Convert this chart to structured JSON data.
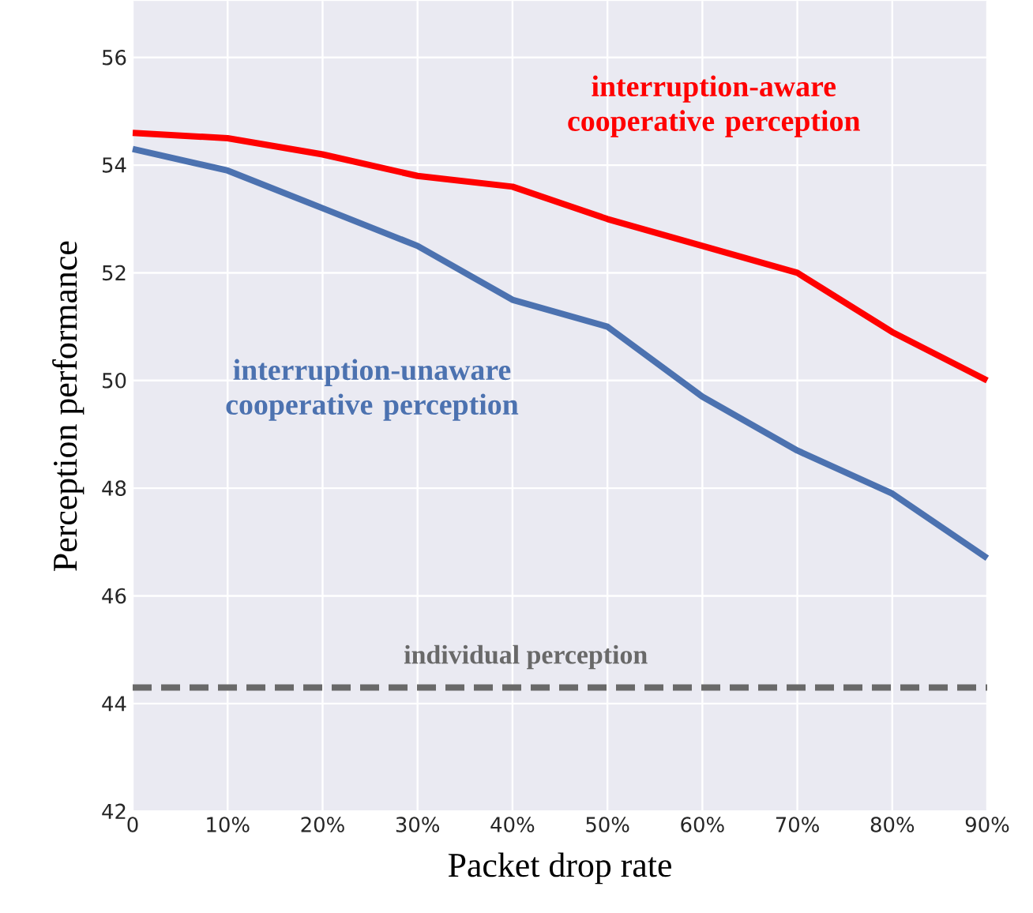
{
  "chart_data": {
    "type": "line",
    "xlabel": "Packet drop rate",
    "ylabel": "Perception performance",
    "x": [
      0,
      10,
      20,
      30,
      40,
      50,
      60,
      70,
      80,
      90
    ],
    "series": [
      {
        "name": "interruption-aware cooperative perception",
        "color": "#ff0000",
        "values": [
          54.6,
          54.5,
          54.2,
          53.8,
          53.6,
          53.0,
          52.5,
          52.0,
          50.9,
          50.0
        ]
      },
      {
        "name": "interruption-unaware cooperative perception",
        "color": "#4c72b0",
        "values": [
          54.3,
          53.9,
          53.2,
          52.5,
          51.5,
          51.0,
          49.7,
          48.7,
          47.9,
          46.7
        ]
      }
    ],
    "ref_lines": [
      {
        "axis": "y",
        "value": 44.3,
        "label": "individual perception",
        "color": "#696969",
        "line_style": "dashed"
      }
    ],
    "xlim": [
      0,
      90
    ],
    "ylim": [
      42,
      57.05
    ],
    "xticks": [
      0,
      {
        "value": 10,
        "label": "10%"
      },
      {
        "value": 20,
        "label": "20%"
      },
      {
        "value": 30,
        "label": "30%"
      },
      {
        "value": 40,
        "label": "40%"
      },
      {
        "value": 50,
        "label": "50%"
      },
      {
        "value": 60,
        "label": "60%"
      },
      {
        "value": 70,
        "label": "70%"
      },
      {
        "value": 80,
        "label": "80%"
      },
      {
        "value": 90,
        "label": "90%"
      }
    ],
    "yticks": [
      42,
      44,
      46,
      48,
      50,
      52,
      54,
      56
    ],
    "grid": true,
    "line_style": "solid",
    "marker": "none",
    "legend": false
  }
}
